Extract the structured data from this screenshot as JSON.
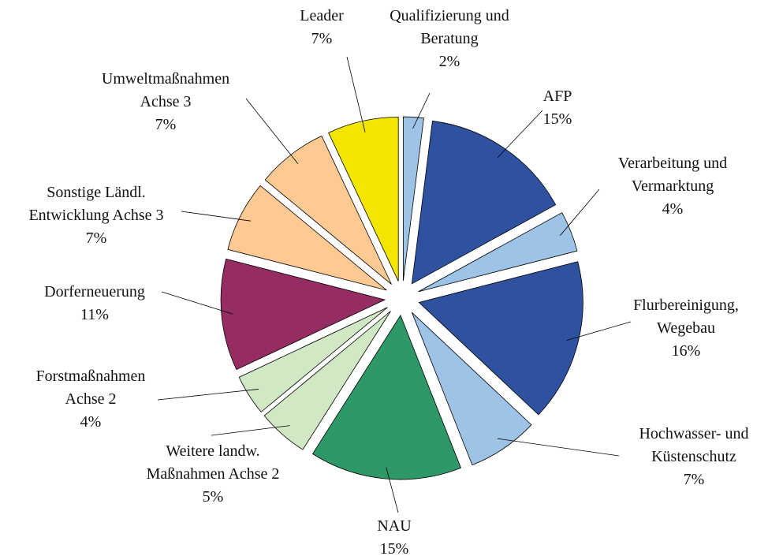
{
  "chart_data": {
    "type": "pie",
    "categories": [
      "Qualifizierung und\nBeratung",
      "AFP",
      "Verarbeitung und\nVermarktung",
      "Flurbereinigung,\nWegebau",
      "Hochwasser- und\nKüstenschutz",
      "NAU",
      "Weitere landw.\nMaßnahmen Achse 2",
      "Forstmaßnahmen\nAchse 2",
      "Dorferneuerung",
      "Sonstige Ländl.\nEntwicklung Achse 3",
      "Umweltmaßnahmen\nAchse 3",
      "Leader"
    ],
    "values": [
      2,
      15,
      4,
      16,
      7,
      15,
      5,
      4,
      11,
      7,
      7,
      7
    ],
    "value_labels": [
      "2%",
      "15%",
      "4%",
      "16%",
      "7%",
      "15%",
      "5%",
      "4%",
      "11%",
      "7%",
      "7%",
      "7%"
    ],
    "colors": [
      "#9dc3e6",
      "#2e52a0",
      "#9dc3e6",
      "#2e52a0",
      "#9dc3e6",
      "#2e9966",
      "#d0e8c4",
      "#d0e8c4",
      "#962d62",
      "#ffc993",
      "#ffc993",
      "#f2e600"
    ]
  }
}
